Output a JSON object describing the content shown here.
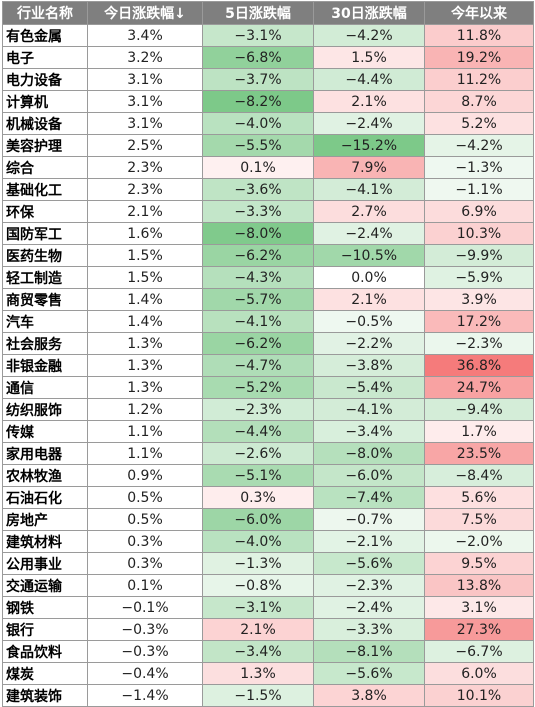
{
  "chart_data": {
    "type": "table",
    "columns": [
      "行业名称",
      "今日涨跌幅↓",
      "5日涨跌幅",
      "30日涨跌幅",
      "今年以来"
    ],
    "colors": {
      "positive": "#f25a5a",
      "negative": "#5dbb6c",
      "neutral": "#ffffff"
    },
    "rows": [
      {
        "name": "有色金属",
        "values": [
          3.4,
          -3.1,
          -4.2,
          11.8
        ]
      },
      {
        "name": "电子",
        "values": [
          3.2,
          -6.8,
          1.5,
          19.2
        ]
      },
      {
        "name": "电力设备",
        "values": [
          3.1,
          -3.7,
          -4.4,
          11.2
        ]
      },
      {
        "name": "计算机",
        "values": [
          3.1,
          -8.2,
          2.1,
          8.7
        ]
      },
      {
        "name": "机械设备",
        "values": [
          3.1,
          -4.0,
          -2.4,
          5.2
        ]
      },
      {
        "name": "美容护理",
        "values": [
          2.5,
          -5.5,
          -15.2,
          -4.2
        ]
      },
      {
        "name": "综合",
        "values": [
          2.3,
          0.1,
          7.9,
          -1.3
        ]
      },
      {
        "name": "基础化工",
        "values": [
          2.3,
          -3.6,
          -4.1,
          -1.1
        ]
      },
      {
        "name": "环保",
        "values": [
          2.1,
          -3.3,
          2.7,
          6.9
        ]
      },
      {
        "name": "国防军工",
        "values": [
          1.6,
          -8.0,
          -2.4,
          10.3
        ]
      },
      {
        "name": "医药生物",
        "values": [
          1.5,
          -6.2,
          -10.5,
          -9.9
        ]
      },
      {
        "name": "轻工制造",
        "values": [
          1.5,
          -4.3,
          0.0,
          -5.9
        ]
      },
      {
        "name": "商贸零售",
        "values": [
          1.4,
          -5.7,
          2.1,
          3.9
        ]
      },
      {
        "name": "汽车",
        "values": [
          1.4,
          -4.1,
          -0.5,
          17.2
        ]
      },
      {
        "name": "社会服务",
        "values": [
          1.3,
          -6.2,
          -2.2,
          -2.3
        ]
      },
      {
        "name": "非银金融",
        "values": [
          1.3,
          -4.7,
          -3.8,
          36.8
        ]
      },
      {
        "name": "通信",
        "values": [
          1.3,
          -5.2,
          -5.4,
          24.7
        ]
      },
      {
        "name": "纺织服饰",
        "values": [
          1.2,
          -2.3,
          -4.1,
          -9.4
        ]
      },
      {
        "name": "传媒",
        "values": [
          1.1,
          -4.4,
          -3.4,
          1.7
        ]
      },
      {
        "name": "家用电器",
        "values": [
          1.1,
          -2.6,
          -8.0,
          23.5
        ]
      },
      {
        "name": "农林牧渔",
        "values": [
          0.9,
          -5.1,
          -6.0,
          -8.4
        ]
      },
      {
        "name": "石油石化",
        "values": [
          0.5,
          0.3,
          -7.4,
          5.6
        ]
      },
      {
        "name": "房地产",
        "values": [
          0.5,
          -6.0,
          -0.7,
          7.5
        ]
      },
      {
        "name": "建筑材料",
        "values": [
          0.3,
          -4.0,
          -2.1,
          -2.0
        ]
      },
      {
        "name": "公用事业",
        "values": [
          0.3,
          -1.3,
          -5.6,
          9.5
        ]
      },
      {
        "name": "交通运输",
        "values": [
          0.1,
          -0.8,
          -2.3,
          13.8
        ]
      },
      {
        "name": "钢铁",
        "values": [
          -0.1,
          -3.1,
          -2.4,
          3.1
        ]
      },
      {
        "name": "银行",
        "values": [
          -0.3,
          2.1,
          -3.3,
          27.3
        ]
      },
      {
        "name": "食品饮料",
        "values": [
          -0.3,
          -3.4,
          -8.1,
          -6.7
        ]
      },
      {
        "name": "煤炭",
        "values": [
          -0.4,
          1.3,
          -5.6,
          6.0
        ]
      },
      {
        "name": "建筑装饰",
        "values": [
          -1.4,
          -1.5,
          3.8,
          10.1
        ]
      }
    ]
  }
}
